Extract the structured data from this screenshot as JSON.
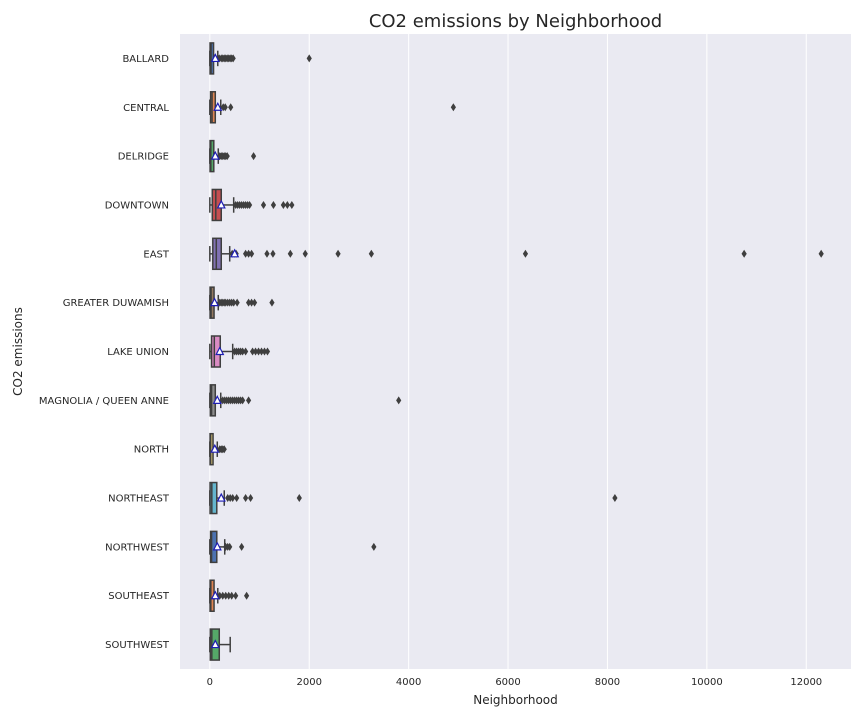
{
  "chart_data": {
    "type": "box",
    "orientation": "horizontal",
    "title": "CO2 emissions by Neighborhood",
    "xlabel": "Neighborhood",
    "ylabel": "CO2 emissions",
    "xlim": [
      -600,
      12900
    ],
    "xticks": [
      0,
      2000,
      4000,
      6000,
      8000,
      10000,
      12000
    ],
    "grid": true,
    "show_means": true,
    "categories": [
      "BALLARD",
      "CENTRAL",
      "DELRIDGE",
      "DOWNTOWN",
      "EAST",
      "GREATER DUWAMISH",
      "LAKE UNION",
      "MAGNOLIA / QUEEN ANNE",
      "NORTH",
      "NORTHEAST",
      "NORTHWEST",
      "SOUTHEAST",
      "SOUTHWEST"
    ],
    "boxes": [
      {
        "name": "BALLARD",
        "color": "#4c72b0",
        "whislo": 0,
        "q1": 5,
        "med": 25,
        "q3": 75,
        "whishi": 160,
        "mean": 110,
        "fliers": [
          190,
          230,
          260,
          290,
          320,
          350,
          380,
          410,
          440,
          470,
          2000
        ]
      },
      {
        "name": "CENTRAL",
        "color": "#dd8452",
        "whislo": 0,
        "q1": 15,
        "med": 45,
        "q3": 110,
        "whishi": 220,
        "mean": 160,
        "fliers": [
          270,
          310,
          420,
          4900
        ]
      },
      {
        "name": "DELRIDGE",
        "color": "#55a868",
        "whislo": 0,
        "q1": 5,
        "med": 20,
        "q3": 80,
        "whishi": 170,
        "mean": 110,
        "fliers": [
          200,
          230,
          260,
          290,
          320,
          350,
          880
        ]
      },
      {
        "name": "DOWNTOWN",
        "color": "#c44e52",
        "whislo": 0,
        "q1": 50,
        "med": 120,
        "q3": 230,
        "whishi": 480,
        "mean": 230,
        "fliers": [
          520,
          560,
          600,
          640,
          680,
          720,
          760,
          800,
          1080,
          1280,
          1480,
          1560,
          1650
        ]
      },
      {
        "name": "EAST",
        "color": "#8172b3",
        "whislo": 0,
        "q1": 60,
        "med": 130,
        "q3": 230,
        "whishi": 400,
        "mean": 500,
        "fliers": [
          450,
          490,
          530,
          720,
          780,
          840,
          1150,
          1270,
          1620,
          1920,
          2580,
          3250,
          6350,
          10750,
          12300
        ]
      },
      {
        "name": "GREATER DUWAMISH",
        "color": "#937860",
        "whislo": 0,
        "q1": 5,
        "med": 25,
        "q3": 85,
        "whishi": 170,
        "mean": 95,
        "fliers": [
          200,
          230,
          260,
          290,
          320,
          360,
          400,
          440,
          480,
          550,
          780,
          840,
          900,
          1250
        ]
      },
      {
        "name": "LAKE UNION",
        "color": "#da8bc3",
        "whislo": 0,
        "q1": 35,
        "med": 90,
        "q3": 210,
        "whishi": 460,
        "mean": 200,
        "fliers": [
          500,
          540,
          580,
          620,
          660,
          720,
          860,
          920,
          980,
          1040,
          1100,
          1160
        ]
      },
      {
        "name": "MAGNOLIA / QUEEN ANNE",
        "color": "#8c8c8c",
        "whislo": 0,
        "q1": 10,
        "med": 35,
        "q3": 110,
        "whishi": 220,
        "mean": 150,
        "fliers": [
          260,
          300,
          340,
          380,
          420,
          460,
          500,
          540,
          580,
          620,
          660,
          780,
          3800
        ]
      },
      {
        "name": "NORTH",
        "color": "#ccb974",
        "whislo": 0,
        "q1": 5,
        "med": 15,
        "q3": 65,
        "whishi": 150,
        "mean": 100,
        "fliers": [
          200,
          230,
          260,
          290
        ]
      },
      {
        "name": "NORTHEAST",
        "color": "#64b5cd",
        "whislo": 0,
        "q1": 5,
        "med": 40,
        "q3": 140,
        "whishi": 290,
        "mean": 230,
        "fliers": [
          360,
          410,
          460,
          540,
          720,
          820,
          1800,
          8150
        ]
      },
      {
        "name": "NORTHWEST",
        "color": "#4c72b0",
        "whislo": 0,
        "q1": 15,
        "med": 35,
        "q3": 140,
        "whishi": 300,
        "mean": 150,
        "fliers": [
          320,
          360,
          400,
          640,
          3300
        ]
      },
      {
        "name": "SOUTHEAST",
        "color": "#dd8452",
        "whislo": 0,
        "q1": 5,
        "med": 20,
        "q3": 85,
        "whishi": 160,
        "mean": 110,
        "fliers": [
          200,
          260,
          320,
          380,
          440,
          520,
          740
        ]
      },
      {
        "name": "SOUTHWEST",
        "color": "#55a868",
        "whislo": 0,
        "q1": 10,
        "med": 40,
        "q3": 190,
        "whishi": 410,
        "mean": 110,
        "fliers": []
      }
    ]
  }
}
